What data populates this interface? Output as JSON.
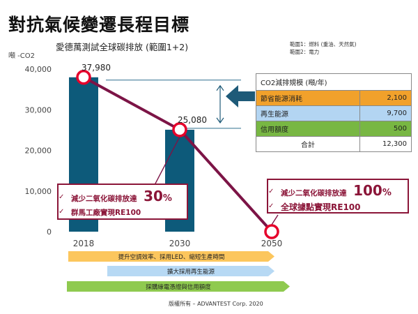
{
  "page_title": "對抗氣候變遷長程目標",
  "scope_notes": [
    "範圍1：燃料 (重油、天然氣)",
    "範圍2：電力"
  ],
  "chart_data": {
    "type": "bar",
    "title": "愛德萬測試全球碳排放 (範圍1+2)",
    "ylabel": "噸 -CO2",
    "xlabel": "",
    "categories": [
      "2018",
      "2030",
      "2050"
    ],
    "values": [
      37980,
      25080,
      0
    ],
    "data_labels": [
      "37,980",
      "25,080",
      ""
    ],
    "ylim": [
      0,
      40000
    ],
    "yticks": [
      0,
      10000,
      20000,
      30000,
      40000
    ],
    "ytick_labels": [
      "0",
      "10,000",
      "20,000",
      "30,000",
      "40,000"
    ],
    "grid": false,
    "bar_color": "#0d5a7a",
    "trend_line_color": "#7c1446",
    "marker_color": "#e5002b"
  },
  "reduction_table": {
    "header": "CO2減排規模 (噸/年)",
    "rows": [
      {
        "label": "節省能源消耗",
        "value": "2,100",
        "color": "#f1a12b"
      },
      {
        "label": "再生能源",
        "value": "9,700",
        "color": "#b3d5f2"
      },
      {
        "label": "信用額度",
        "value": "500",
        "color": "#78b743"
      }
    ],
    "total_label": "合計",
    "total_value": "12,300"
  },
  "callouts": {
    "c2030": {
      "line1_text": "減少二氧化碳排放達",
      "line1_value": "30",
      "line1_unit": "%",
      "line2_text": "群馬工廠實現RE100"
    },
    "c2050": {
      "line1_text": "減少二氧化碳排放達",
      "line1_value": "100",
      "line1_unit": "%",
      "line2_text": "全球據點實現RE100"
    },
    "check_glyph": "✓"
  },
  "strategies": [
    {
      "label": "提升空調效率、採用LED、縮短生產時間",
      "color": "#fcc65d"
    },
    {
      "label": "擴大採用再生能源",
      "color": "#b7d9f4"
    },
    {
      "label": "採購綠電憑證與信用額度",
      "color": "#8fca4f"
    }
  ],
  "copyright": "版權所有 – ADVANTEST Corp. 2020"
}
